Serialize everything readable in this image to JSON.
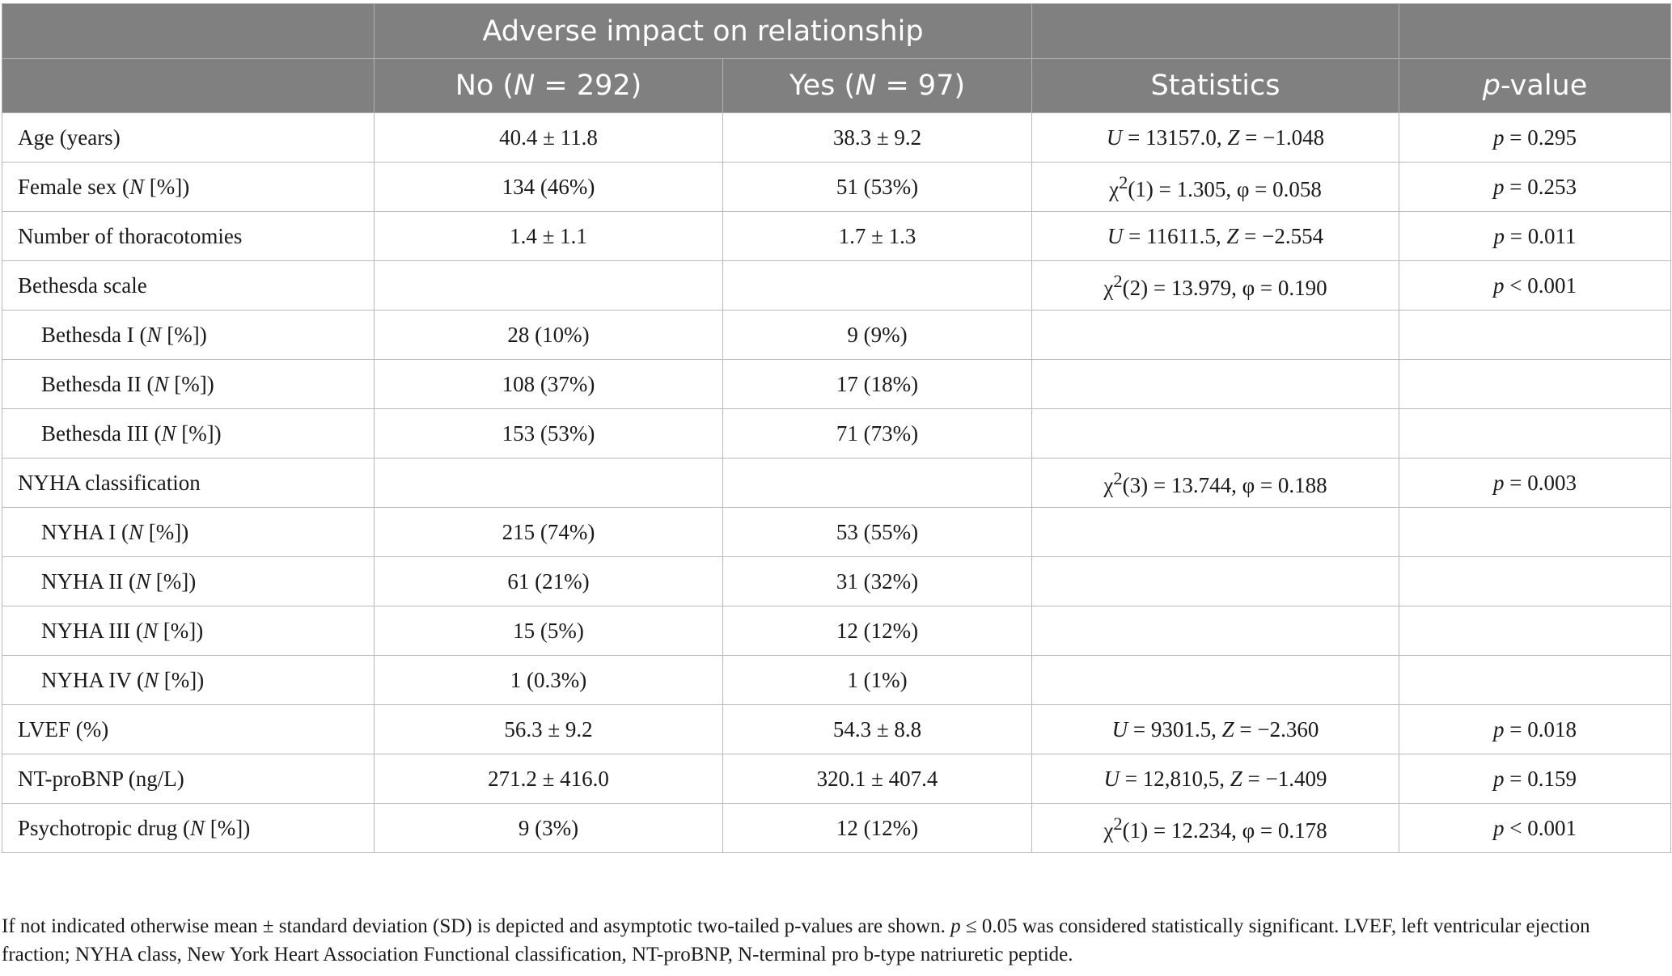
{
  "header": {
    "group_title": "Adverse impact on relationship",
    "col_no_prefix": "No (",
    "col_no_n": "N",
    "col_no_suffix": " = 292)",
    "col_yes_prefix": "Yes (",
    "col_yes_n": "N",
    "col_yes_suffix": " = 97)",
    "col_stats": "Statistics",
    "col_p_italic": "p",
    "col_p_suffix": "-value"
  },
  "rows": {
    "age": {
      "label": "Age (years)",
      "no": "40.4 ± 11.8",
      "yes": "38.3 ± 9.2",
      "stat_a": "U",
      "stat_b": " = 13157.0, ",
      "stat_c": "Z",
      "stat_d": " = −1.048",
      "p_italic": "p",
      "p_val": " = 0.295"
    },
    "female": {
      "label_pre": "Female sex (",
      "label_it": "N",
      "label_post": " [%])",
      "no": "134 (46%)",
      "yes": "51 (53%)",
      "stat_a": "χ",
      "stat_sup": "2",
      "stat_b": "(1) = 1.305, φ = 0.058",
      "p_italic": "p",
      "p_val": " = 0.253"
    },
    "thoracotomies": {
      "label": "Number of thoracotomies",
      "no": "1.4 ± 1.1",
      "yes": "1.7 ± 1.3",
      "stat_a": "U",
      "stat_b": " = 11611.5, ",
      "stat_c": "Z",
      "stat_d": " = −2.554",
      "p_italic": "p",
      "p_val": " = 0.011"
    },
    "bethesda": {
      "label": "Bethesda scale",
      "stat_a": "χ",
      "stat_sup": "2",
      "stat_b": "(2) = 13.979, φ = 0.190",
      "p_italic": "p",
      "p_val": " < 0.001"
    },
    "bethesda1": {
      "label_pre": "Bethesda I (",
      "label_it": "N",
      "label_post": " [%])",
      "no": "28 (10%)",
      "yes": "9 (9%)"
    },
    "bethesda2": {
      "label_pre": "Bethesda II (",
      "label_it": "N",
      "label_post": " [%])",
      "no": "108 (37%)",
      "yes": "17 (18%)"
    },
    "bethesda3": {
      "label_pre": "Bethesda III (",
      "label_it": "N",
      "label_post": " [%])",
      "no": "153 (53%)",
      "yes": "71 (73%)"
    },
    "nyha": {
      "label": "NYHA classification",
      "stat_a": "χ",
      "stat_sup": "2",
      "stat_b": "(3) = 13.744, φ = 0.188",
      "p_italic": "p",
      "p_val": " = 0.003"
    },
    "nyha1": {
      "label_pre": "NYHA I (",
      "label_it": "N",
      "label_post": " [%])",
      "no": "215 (74%)",
      "yes": "53 (55%)"
    },
    "nyha2": {
      "label_pre": "NYHA II (",
      "label_it": "N",
      "label_post": " [%])",
      "no": "61 (21%)",
      "yes": "31 (32%)"
    },
    "nyha3": {
      "label_pre": "NYHA III (",
      "label_it": "N",
      "label_post": " [%])",
      "no": "15 (5%)",
      "yes": "12 (12%)"
    },
    "nyha4": {
      "label_pre": "NYHA IV (",
      "label_it": "N",
      "label_post": " [%])",
      "no": "1 (0.3%)",
      "yes": "1 (1%)"
    },
    "lvef": {
      "label": "LVEF (%)",
      "no": "56.3 ± 9.2",
      "yes": "54.3 ± 8.8",
      "stat_a": "U",
      "stat_b": " = 9301.5, ",
      "stat_c": "Z",
      "stat_d": " = −2.360",
      "p_italic": "p",
      "p_val": " = 0.018"
    },
    "ntprobnp": {
      "label": "NT-proBNP (ng/L)",
      "no": "271.2 ± 416.0",
      "yes": "320.1 ± 407.4",
      "stat_a": "U",
      "stat_b": " = 12,810,5, ",
      "stat_c": "Z",
      "stat_d": " = −1.409",
      "p_italic": "p",
      "p_val": " = 0.159"
    },
    "psychotropic": {
      "label_pre": "Psychotropic drug (",
      "label_it": "N",
      "label_post": " [%])",
      "no": "9 (3%)",
      "yes": "12 (12%)",
      "stat_a": "χ",
      "stat_sup": "2",
      "stat_b": "(1) = 12.234, φ = 0.178",
      "p_italic": "p",
      "p_val": " < 0.001"
    }
  },
  "footnote": {
    "part1": "If not indicated otherwise mean ± standard deviation (SD) is depicted and asymptotic two-tailed p-values are shown. ",
    "p_italic": "p",
    "part2": " ≤ 0.05 was considered statistically significant. LVEF, left ventricular ejection fraction; NYHA class, New York Heart Association Functional classification, NT-proBNP, N-terminal pro b-type natriuretic peptide."
  }
}
